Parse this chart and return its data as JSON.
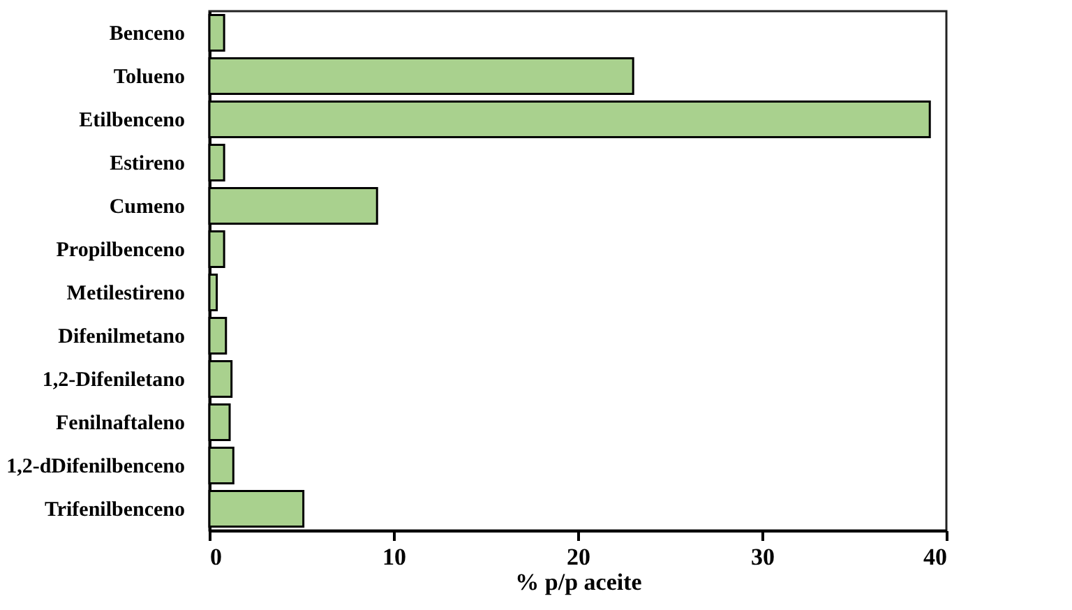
{
  "chart_data": {
    "type": "bar",
    "orientation": "horizontal",
    "xlabel": "% p/p aceite",
    "categories": [
      "Benceno",
      "Tolueno",
      "Etilbenceno",
      "Estireno",
      "Cumeno",
      "Propilbenceno",
      "Metilestireno",
      "Difenilmetano",
      "1,2-Difeniletano",
      "Fenilnaftaleno",
      "1,2-dDifenilbenceno",
      "Trifenilbenceno"
    ],
    "values": [
      0.8,
      23.0,
      39.1,
      0.8,
      9.1,
      0.8,
      0.4,
      0.9,
      1.2,
      1.1,
      1.3,
      5.1
    ],
    "color": "#a9d18e",
    "xlim": [
      0,
      40
    ],
    "xticks": [
      0,
      10,
      20,
      30,
      40
    ],
    "grid": false
  }
}
